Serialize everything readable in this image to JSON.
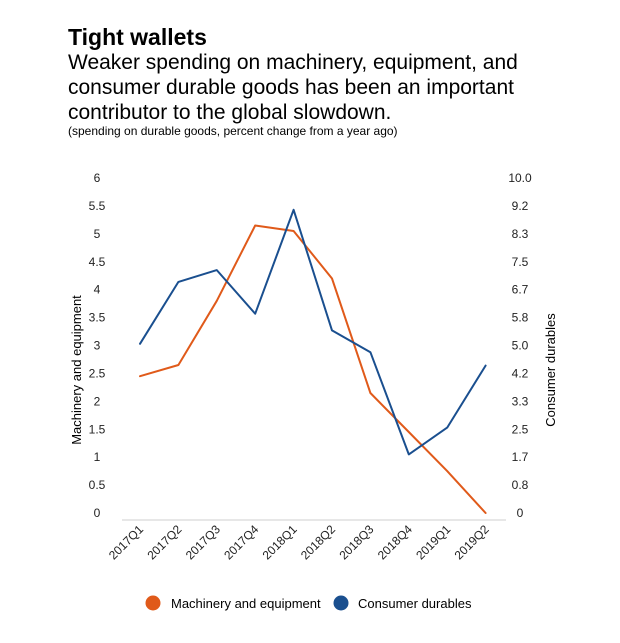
{
  "header": {
    "title": "Tight wallets",
    "subtitle": "Weaker spending on machinery, equipment, and consumer durable goods has been an important contributor to the global slowdown.",
    "note": "(spending on durable goods, percent change from a year ago)"
  },
  "chart_data": {
    "type": "line",
    "categories": [
      "2017Q1",
      "2017Q2",
      "2017Q3",
      "2017Q4",
      "2018Q1",
      "2018Q2",
      "2018Q3",
      "2018Q4",
      "2019Q1",
      "2019Q2"
    ],
    "series": [
      {
        "name": "Machinery and equipment",
        "axis": "left",
        "color": "#e05a1a",
        "values": [
          2.45,
          2.65,
          3.8,
          5.15,
          5.05,
          4.2,
          2.15,
          1.45,
          0.75,
          0.0
        ]
      },
      {
        "name": "Consumer durables",
        "axis": "right",
        "color": "#1a4f8f",
        "values": [
          5.05,
          6.9,
          7.25,
          5.95,
          9.05,
          5.45,
          4.8,
          1.75,
          2.55,
          4.4
        ]
      }
    ],
    "left_axis": {
      "label": "Machinery and equipment",
      "ylim": [
        0,
        6
      ],
      "ticks": [
        "0",
        "0.5",
        "1",
        "1.5",
        "2",
        "2.5",
        "3",
        "3.5",
        "4",
        "4.5",
        "5",
        "5.5",
        "6"
      ]
    },
    "right_axis": {
      "label": "Consumer durables",
      "ylim": [
        0,
        10
      ],
      "ticks": [
        "0",
        "0.8",
        "1.7",
        "2.5",
        "3.3",
        "4.2",
        "5.0",
        "5.8",
        "6.7",
        "7.5",
        "8.3",
        "9.2",
        "10.0"
      ]
    },
    "legend": {
      "placement": "bottom",
      "items": [
        "Machinery and equipment",
        "Consumer durables"
      ]
    }
  }
}
